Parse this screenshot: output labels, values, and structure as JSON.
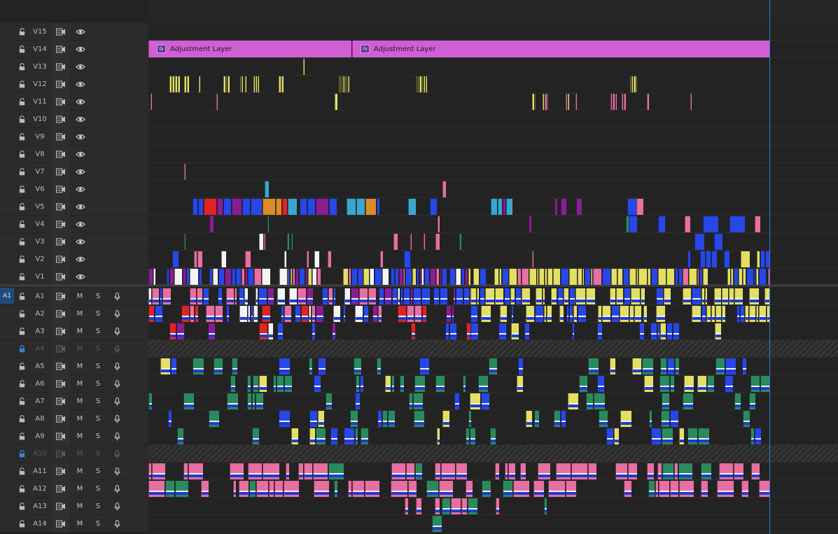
{
  "target_label": "A1",
  "tracks": [
    {
      "id": "V15",
      "kind": "video",
      "locked": false
    },
    {
      "id": "V14",
      "kind": "video",
      "locked": false
    },
    {
      "id": "V13",
      "kind": "video",
      "locked": false
    },
    {
      "id": "V12",
      "kind": "video",
      "locked": false
    },
    {
      "id": "V11",
      "kind": "video",
      "locked": false
    },
    {
      "id": "V10",
      "kind": "video",
      "locked": false
    },
    {
      "id": "V9",
      "kind": "video",
      "locked": false
    },
    {
      "id": "V8",
      "kind": "video",
      "locked": false
    },
    {
      "id": "V7",
      "kind": "video",
      "locked": false
    },
    {
      "id": "V6",
      "kind": "video",
      "locked": false
    },
    {
      "id": "V5",
      "kind": "video",
      "locked": false
    },
    {
      "id": "V4",
      "kind": "video",
      "locked": false
    },
    {
      "id": "V3",
      "kind": "video",
      "locked": false
    },
    {
      "id": "V2",
      "kind": "video",
      "locked": false
    },
    {
      "id": "V1",
      "kind": "video",
      "locked": false
    },
    {
      "id": "A1",
      "kind": "audio",
      "locked": false
    },
    {
      "id": "A2",
      "kind": "audio",
      "locked": false
    },
    {
      "id": "A3",
      "kind": "audio",
      "locked": false
    },
    {
      "id": "A4",
      "kind": "audio",
      "locked": true
    },
    {
      "id": "A5",
      "kind": "audio",
      "locked": false
    },
    {
      "id": "A6",
      "kind": "audio",
      "locked": false
    },
    {
      "id": "A7",
      "kind": "audio",
      "locked": false
    },
    {
      "id": "A8",
      "kind": "audio",
      "locked": false
    },
    {
      "id": "A9",
      "kind": "audio",
      "locked": false
    },
    {
      "id": "A10",
      "kind": "audio",
      "locked": true
    },
    {
      "id": "A11",
      "kind": "audio",
      "locked": false
    },
    {
      "id": "A12",
      "kind": "audio",
      "locked": false
    },
    {
      "id": "A13",
      "kind": "audio",
      "locked": false
    },
    {
      "id": "A14",
      "kind": "audio",
      "locked": false
    }
  ],
  "mute_label": "M",
  "solo_label": "S",
  "adjustment_layers": [
    {
      "label": "Adjustment Layer"
    },
    {
      "label": "Adjustment Layer"
    }
  ],
  "fx_badge": "fx",
  "icons": [
    "lock-icon",
    "sync-lock-icon",
    "eye-icon",
    "microphone-icon",
    "fx-icon",
    "transition-icon"
  ],
  "colors": {
    "adjustment": "#d15fd4",
    "yellow": "#e3df64",
    "blue": "#2747e6",
    "cyan": "#3aa6cf",
    "red": "#e02424",
    "orange": "#dc8a2c",
    "purple": "#8a1d92",
    "pink": "#e86fa2",
    "green": "#2a8a5e",
    "white": "#f4f4f4",
    "playhead": "#3b7bd0",
    "target": "#1f4c7e"
  }
}
